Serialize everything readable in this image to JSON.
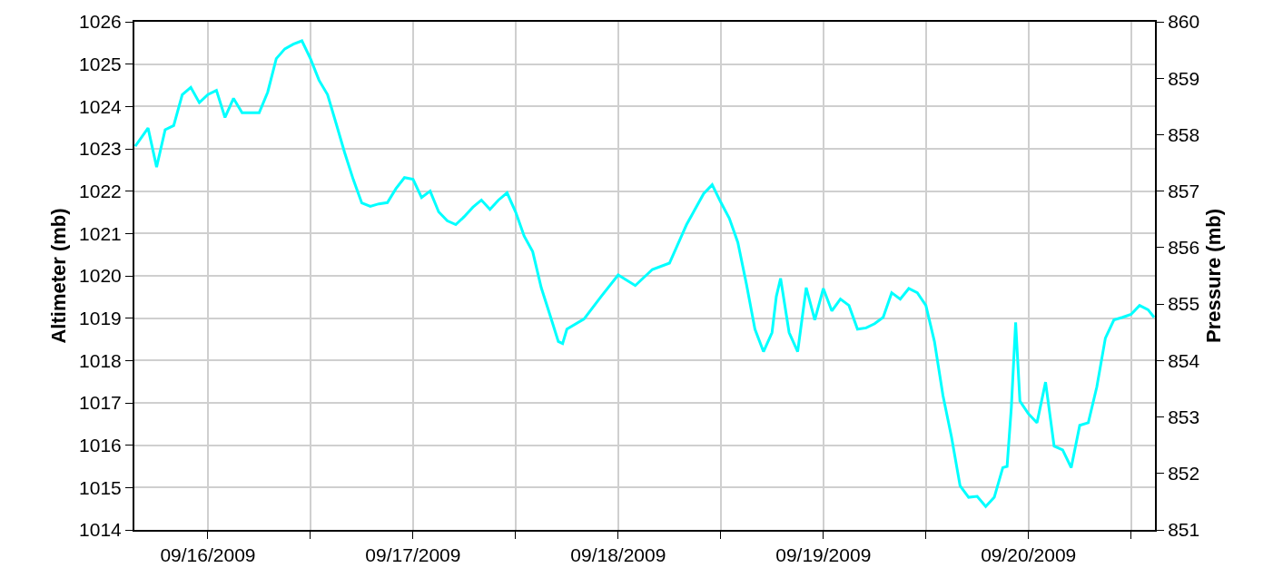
{
  "chart_data": {
    "type": "line",
    "ylabel": "Altimeter (mb)",
    "y2label": "Pressure (mb)",
    "grid": true,
    "marker": "none",
    "line_style": "solid",
    "x": [
      "2009-09-15T15:30",
      "2009-09-15T17:00",
      "2009-09-15T18:00",
      "2009-09-15T19:00",
      "2009-09-15T20:00",
      "2009-09-15T21:00",
      "2009-09-15T22:00",
      "2009-09-15T23:00",
      "2009-09-16T00:00",
      "2009-09-16T01:00",
      "2009-09-16T02:00",
      "2009-09-16T03:00",
      "2009-09-16T04:00",
      "2009-09-16T06:00",
      "2009-09-16T07:00",
      "2009-09-16T08:00",
      "2009-09-16T09:00",
      "2009-09-16T10:00",
      "2009-09-16T11:00",
      "2009-09-16T12:00",
      "2009-09-16T13:00",
      "2009-09-16T14:00",
      "2009-09-16T15:00",
      "2009-09-16T16:00",
      "2009-09-16T17:00",
      "2009-09-16T18:00",
      "2009-09-16T19:00",
      "2009-09-16T20:00",
      "2009-09-16T21:00",
      "2009-09-16T22:00",
      "2009-09-16T23:00",
      "2009-09-17T00:00",
      "2009-09-17T01:00",
      "2009-09-17T02:00",
      "2009-09-17T03:00",
      "2009-09-17T04:00",
      "2009-09-17T05:00",
      "2009-09-17T06:00",
      "2009-09-17T07:00",
      "2009-09-17T08:00",
      "2009-09-17T09:00",
      "2009-09-17T10:00",
      "2009-09-17T11:00",
      "2009-09-17T12:00",
      "2009-09-17T13:00",
      "2009-09-17T14:00",
      "2009-09-17T15:00",
      "2009-09-17T16:00",
      "2009-09-17T17:00",
      "2009-09-17T17:30",
      "2009-09-17T18:00",
      "2009-09-17T20:00",
      "2009-09-17T22:00",
      "2009-09-18T00:00",
      "2009-09-18T02:00",
      "2009-09-18T04:00",
      "2009-09-18T06:00",
      "2009-09-18T08:00",
      "2009-09-18T10:00",
      "2009-09-18T11:00",
      "2009-09-18T12:00",
      "2009-09-18T13:00",
      "2009-09-18T14:00",
      "2009-09-18T15:00",
      "2009-09-18T16:00",
      "2009-09-18T17:00",
      "2009-09-18T18:00",
      "2009-09-18T18:30",
      "2009-09-18T19:00",
      "2009-09-18T20:00",
      "2009-09-18T21:00",
      "2009-09-18T22:00",
      "2009-09-18T23:00",
      "2009-09-19T00:00",
      "2009-09-19T01:00",
      "2009-09-19T02:00",
      "2009-09-19T03:00",
      "2009-09-19T04:00",
      "2009-09-19T05:00",
      "2009-09-19T06:00",
      "2009-09-19T07:00",
      "2009-09-19T08:00",
      "2009-09-19T09:00",
      "2009-09-19T10:00",
      "2009-09-19T11:00",
      "2009-09-19T12:00",
      "2009-09-19T13:00",
      "2009-09-19T14:00",
      "2009-09-19T15:00",
      "2009-09-19T16:00",
      "2009-09-19T17:00",
      "2009-09-19T18:00",
      "2009-09-19T19:00",
      "2009-09-19T20:00",
      "2009-09-19T21:00",
      "2009-09-19T21:30",
      "2009-09-19T22:00",
      "2009-09-19T22:30",
      "2009-09-19T23:00",
      "2009-09-20T00:00",
      "2009-09-20T01:00",
      "2009-09-20T02:00",
      "2009-09-20T03:00",
      "2009-09-20T04:00",
      "2009-09-20T05:00",
      "2009-09-20T06:00",
      "2009-09-20T07:00",
      "2009-09-20T08:00",
      "2009-09-20T09:00",
      "2009-09-20T10:00",
      "2009-09-20T11:00",
      "2009-09-20T12:00",
      "2009-09-20T13:00",
      "2009-09-20T14:00",
      "2009-09-20T14:42"
    ],
    "series": [
      {
        "color": "#00ffff",
        "values": [
          1023.06,
          1023.49,
          1022.57,
          1023.45,
          1023.55,
          1024.28,
          1024.45,
          1024.09,
          1024.28,
          1024.38,
          1023.74,
          1024.19,
          1023.85,
          1023.85,
          1024.34,
          1025.13,
          1025.36,
          1025.47,
          1025.55,
          1025.13,
          1024.62,
          1024.28,
          1023.6,
          1022.91,
          1022.28,
          1021.72,
          1021.64,
          1021.7,
          1021.73,
          1022.06,
          1022.32,
          1022.28,
          1021.85,
          1022.0,
          1021.51,
          1021.3,
          1021.21,
          1021.4,
          1021.62,
          1021.79,
          1021.57,
          1021.79,
          1021.96,
          1021.51,
          1020.94,
          1020.57,
          1019.72,
          1019.09,
          1018.45,
          1018.4,
          1018.74,
          1018.98,
          1019.51,
          1020.02,
          1019.77,
          1020.15,
          1020.3,
          1021.21,
          1021.94,
          1022.15,
          1021.74,
          1021.36,
          1020.79,
          1019.81,
          1018.74,
          1018.21,
          1018.66,
          1019.51,
          1019.94,
          1018.66,
          1018.21,
          1019.72,
          1018.96,
          1019.7,
          1019.17,
          1019.45,
          1019.3,
          1018.74,
          1018.77,
          1018.87,
          1019.02,
          1019.6,
          1019.45,
          1019.7,
          1019.6,
          1019.3,
          1018.45,
          1017.17,
          1016.19,
          1015.04,
          1014.77,
          1014.79,
          1014.55,
          1014.77,
          1015.47,
          1015.5,
          1016.9,
          1018.9,
          1017.04,
          1016.74,
          1016.53,
          1017.49,
          1015.98,
          1015.89,
          1015.47,
          1016.47,
          1016.53,
          1017.38,
          1018.53,
          1018.96,
          1019.02,
          1019.09,
          1019.3,
          1019.2,
          1019.02
        ]
      }
    ],
    "xlim": [
      "2009-09-15T15:24",
      "2009-09-20T14:48"
    ],
    "xticks": [
      {
        "value": "2009-09-16",
        "label": "09/16/2009"
      },
      {
        "value": "2009-09-16T12:00",
        "label": null
      },
      {
        "value": "2009-09-17",
        "label": "09/17/2009"
      },
      {
        "value": "2009-09-17T12:00",
        "label": null
      },
      {
        "value": "2009-09-18",
        "label": "09/18/2009"
      },
      {
        "value": "2009-09-18T12:00",
        "label": null
      },
      {
        "value": "2009-09-19",
        "label": "09/19/2009"
      },
      {
        "value": "2009-09-19T12:00",
        "label": null
      },
      {
        "value": "2009-09-20",
        "label": "09/20/2009"
      },
      {
        "value": "2009-09-20T12:00",
        "label": null
      }
    ],
    "ylim": [
      1014,
      1026
    ],
    "yticks": [
      1014,
      1015,
      1016,
      1017,
      1018,
      1019,
      1020,
      1021,
      1022,
      1023,
      1024,
      1025,
      1026
    ],
    "y2lim": [
      851,
      860
    ],
    "y2ticks": [
      851,
      852,
      853,
      854,
      855,
      856,
      857,
      858,
      859,
      860
    ]
  }
}
